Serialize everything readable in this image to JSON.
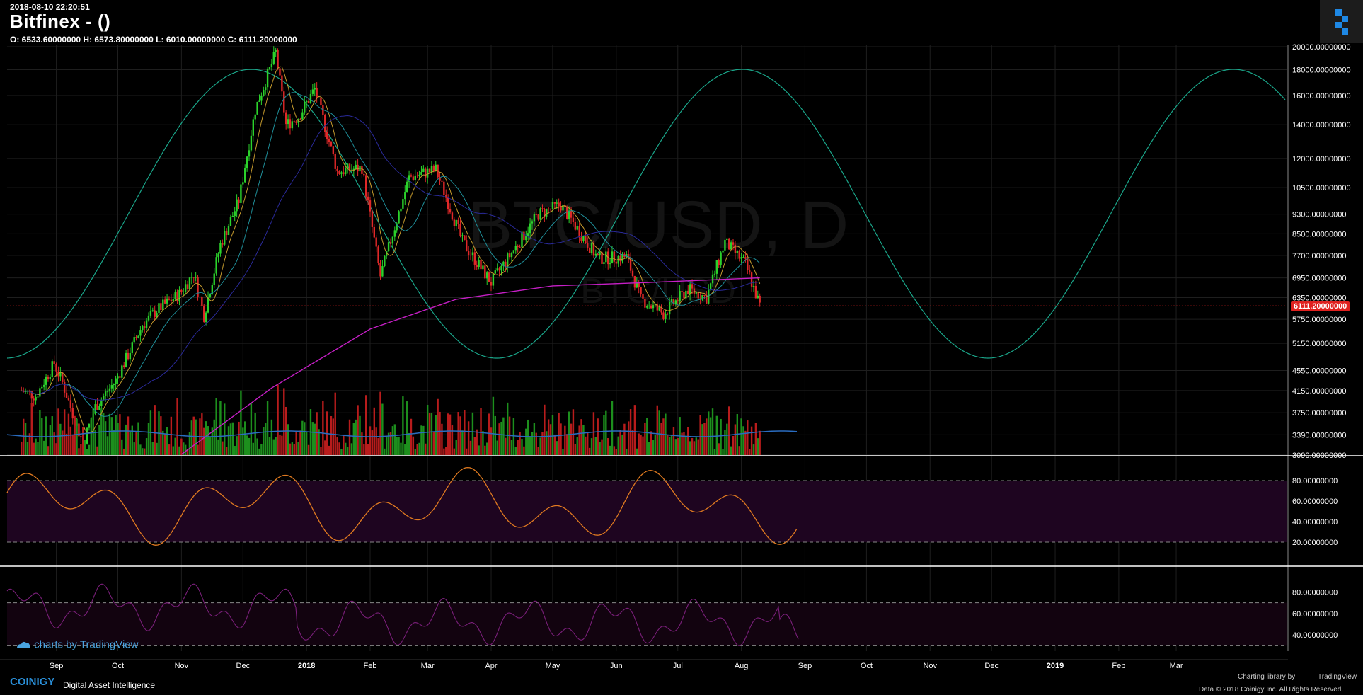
{
  "header": {
    "timestamp": "2018-08-10 22:20:51",
    "title": "Bitfinex -  ()",
    "ohlc": "O: 6533.60000000 H: 6573.80000000 L: 6010.00000000 C: 6111.20000000"
  },
  "watermark": {
    "line1": "BTC/USD, D",
    "line2": "BTC/USD"
  },
  "colors": {
    "background": "#000000",
    "grid": "#1e1e1e",
    "up_candle": "#2bd22b",
    "down_candle": "#e02828",
    "sine": "#1aa68a",
    "sma200": "#c61fc6",
    "sma_mid": "#2a2a9a",
    "sma_fast": "#c59a2d",
    "stoch_line": "#e07a20",
    "stoch_band": "#1e0520",
    "rsi_line": "#7a1f7a",
    "price_marker": "#e0211f",
    "volume_ma": "#2a6cc0"
  },
  "icons": {
    "logo_button": "coinigy-logo-icon",
    "tv_badge": "tradingview-cloud-icon"
  },
  "price_axis_labels": [
    "20000.00000000",
    "18000.00000000",
    "16000.00000000",
    "14000.00000000",
    "12000.00000000",
    "10500.00000000",
    "9300.00000000",
    "8500.00000000",
    "7700.00000000",
    "6950.00000000",
    "6350.00000000",
    "5750.00000000",
    "5150.00000000",
    "4550.00000000",
    "4150.00000000",
    "3750.00000000",
    "3390.00000000",
    "3090.00000000"
  ],
  "stoch_axis_labels": [
    "80.00000000",
    "60.00000000",
    "40.00000000",
    "20.00000000"
  ],
  "rsi_axis_labels": [
    "80.00000000",
    "60.00000000",
    "40.00000000"
  ],
  "time_axis_labels": [
    "Sep",
    "Oct",
    "Nov",
    "Dec",
    "2018",
    "Feb",
    "Mar",
    "Apr",
    "May",
    "Jun",
    "Jul",
    "Aug",
    "Sep",
    "Oct",
    "Nov",
    "Dec",
    "2019",
    "Feb",
    "Mar"
  ],
  "current_price_label": "6111.20000000",
  "tv_badge": "charts by TradingView",
  "footer": {
    "brand": "COINIGY",
    "tagline": "Digital Asset Intelligence",
    "library": "Charting library by",
    "library_name": "TradingView",
    "copyright": "Data © 2018  Coinigy Inc. All Rights Reserved."
  },
  "chart_data": {
    "type": "candlestick",
    "title": "Bitfinex -  ()",
    "symbol_watermark": "BTC/USD, D",
    "y_scale": "log",
    "ylim": [
      3090,
      20000
    ],
    "price_series": {
      "name": "close (approx)",
      "points": [
        [
          "2017-08-15",
          4150
        ],
        [
          "2017-08-22",
          4050
        ],
        [
          "2017-08-31",
          4700
        ],
        [
          "2017-09-04",
          4300
        ],
        [
          "2017-09-14",
          3250
        ],
        [
          "2017-09-20",
          3850
        ],
        [
          "2017-09-30",
          4350
        ],
        [
          "2017-10-13",
          5600
        ],
        [
          "2017-10-20",
          6000
        ],
        [
          "2017-10-31",
          6450
        ],
        [
          "2017-11-07",
          7100
        ],
        [
          "2017-11-12",
          5850
        ],
        [
          "2017-11-20",
          8100
        ],
        [
          "2017-11-29",
          9900
        ],
        [
          "2017-12-07",
          15000
        ],
        [
          "2017-12-17",
          19500
        ],
        [
          "2017-12-22",
          14000
        ],
        [
          "2017-12-28",
          14500
        ],
        [
          "2018-01-05",
          16500
        ],
        [
          "2018-01-16",
          11300
        ],
        [
          "2018-01-28",
          11500
        ],
        [
          "2018-02-06",
          7000
        ],
        [
          "2018-02-20",
          11000
        ],
        [
          "2018-03-05",
          11400
        ],
        [
          "2018-03-18",
          8200
        ],
        [
          "2018-04-01",
          6800
        ],
        [
          "2018-04-12",
          7900
        ],
        [
          "2018-04-24",
          9300
        ],
        [
          "2018-05-05",
          9700
        ],
        [
          "2018-05-23",
          7600
        ],
        [
          "2018-06-06",
          7650
        ],
        [
          "2018-06-13",
          6300
        ],
        [
          "2018-06-24",
          5900
        ],
        [
          "2018-07-06",
          6600
        ],
        [
          "2018-07-15",
          6350
        ],
        [
          "2018-07-24",
          8200
        ],
        [
          "2018-08-03",
          7400
        ],
        [
          "2018-08-10",
          6111.2
        ]
      ]
    },
    "last_ohlc": {
      "open": 6533.6,
      "high": 6573.8,
      "low": 6010.0,
      "close": 6111.2
    },
    "sma200": [
      [
        "2017-11-01",
        3100
      ],
      [
        "2017-12-15",
        4200
      ],
      [
        "2018-02-01",
        5500
      ],
      [
        "2018-03-15",
        6300
      ],
      [
        "2018-05-01",
        6700
      ],
      [
        "2018-06-15",
        6800
      ],
      [
        "2018-08-10",
        6950
      ]
    ],
    "stochastic": {
      "ylim": [
        0,
        100
      ],
      "levels": [
        80,
        20
      ]
    },
    "rsi": {
      "ylim": [
        0,
        100
      ],
      "levels": [
        70,
        30
      ]
    }
  }
}
